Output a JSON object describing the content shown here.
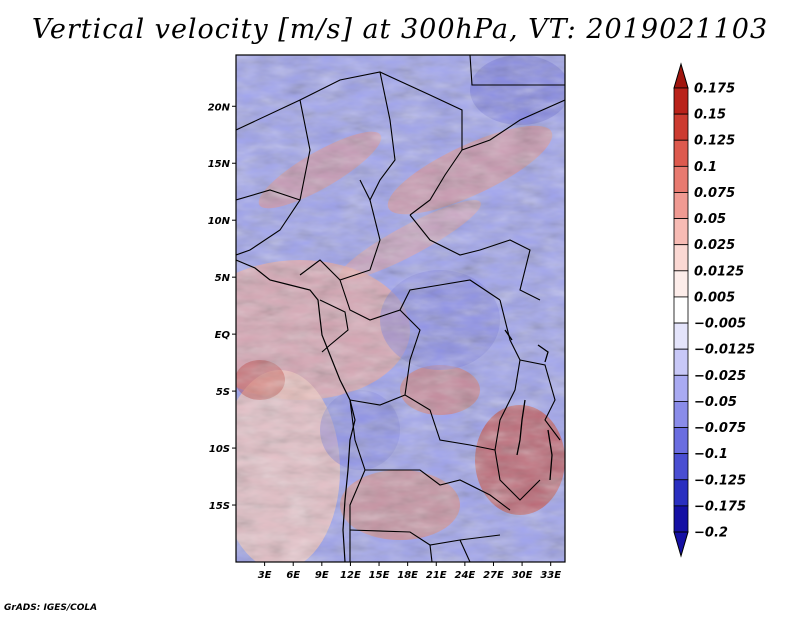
{
  "title": "Vertical velocity [m/s] at 300hPa, VT: 2019021103",
  "credit": "GrADS: IGES/COLA",
  "map": {
    "variable": "Vertical velocity",
    "units": "m/s",
    "level": "300hPa",
    "valid_time": "2019021103",
    "lat_ticks": [
      {
        "label": "20N",
        "value": 20
      },
      {
        "label": "15N",
        "value": 15
      },
      {
        "label": "10N",
        "value": 10
      },
      {
        "label": "5N",
        "value": 5
      },
      {
        "label": "EQ",
        "value": 0
      },
      {
        "label": "5S",
        "value": -5
      },
      {
        "label": "10S",
        "value": -10
      },
      {
        "label": "15S",
        "value": -15
      }
    ],
    "lon_ticks": [
      {
        "label": "3E",
        "value": 3
      },
      {
        "label": "6E",
        "value": 6
      },
      {
        "label": "9E",
        "value": 9
      },
      {
        "label": "12E",
        "value": 12
      },
      {
        "label": "15E",
        "value": 15
      },
      {
        "label": "18E",
        "value": 18
      },
      {
        "label": "21E",
        "value": 21
      },
      {
        "label": "24E",
        "value": 24
      },
      {
        "label": "27E",
        "value": 27
      },
      {
        "label": "30E",
        "value": 30
      },
      {
        "label": "33E",
        "value": 33
      }
    ],
    "lon_range": [
      0,
      34.5
    ],
    "lat_range": [
      -20,
      24.5
    ]
  },
  "colorbar": {
    "levels": [
      {
        "label": "0.175",
        "color": "#a0150e"
      },
      {
        "label": "0.15",
        "color": "#b9221a"
      },
      {
        "label": "0.125",
        "color": "#cc3b30"
      },
      {
        "label": "0.1",
        "color": "#dd5a4e"
      },
      {
        "label": "0.075",
        "color": "#e87a70"
      },
      {
        "label": "0.05",
        "color": "#f09a92"
      },
      {
        "label": "0.025",
        "color": "#f7bbb4"
      },
      {
        "label": "0.0125",
        "color": "#fbd8d3"
      },
      {
        "label": "0.005",
        "color": "#fdedea"
      },
      {
        "label": "−0.005",
        "color": "#ffffff"
      },
      {
        "label": "−0.0125",
        "color": "#e4e4fb"
      },
      {
        "label": "−0.025",
        "color": "#c8c8f7"
      },
      {
        "label": "−0.05",
        "color": "#a9aaf2"
      },
      {
        "label": "−0.075",
        "color": "#8a8ce9"
      },
      {
        "label": "−0.1",
        "color": "#6a6de0"
      },
      {
        "label": "−0.125",
        "color": "#4a4ed2"
      },
      {
        "label": "−0.175",
        "color": "#2a2fc0"
      },
      {
        "label": "−0.2",
        "color": "#1510a4"
      }
    ],
    "top_arrow_color": "#a0150e",
    "bottom_arrow_color": "#1510a4"
  }
}
